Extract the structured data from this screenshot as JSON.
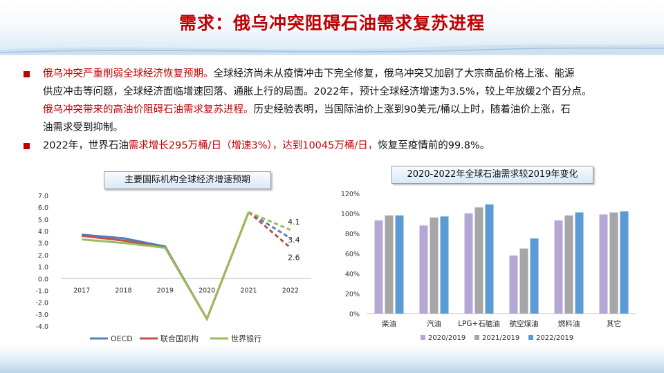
{
  "title": "需求：俄乌冲突阻碍石油需求复苏进程",
  "bullets": [
    {
      "segments": [
        {
          "text": "俄乌冲突严重削弱全球经济恢复预期。",
          "red": true
        },
        {
          "text": "全球经济尚未从疫情冲击下完全修复，俄乌冲突又加剧了大宗商品价格上涨、能源",
          "red": false
        }
      ]
    },
    {
      "segments": [
        {
          "text": "供应冲击等问题，全球经济面临增速回落、通胀上行的局面。2022年，预计全球经济增速为3.5%，较上年放缓2个百分点。",
          "red": false
        }
      ],
      "continuation": true
    },
    {
      "segments": [
        {
          "text": "俄乌冲突带来的高油价阻碍石油需求复苏进程。",
          "red": true
        },
        {
          "text": "历史经验表明，当国际油价上涨到90美元/桶以上时，随着油价上涨，石",
          "red": false
        }
      ],
      "continuation": true
    },
    {
      "segments": [
        {
          "text": "油需求受到抑制。",
          "red": false
        }
      ],
      "continuation": true
    },
    {
      "segments": [
        {
          "text": "2022年，世界石油",
          "red": false
        },
        {
          "text": "需求增长295万桶/日（增速3%），达到10045万桶/日，",
          "red": true
        },
        {
          "text": "恢复至疫情前的99.8%。",
          "red": false
        }
      ]
    }
  ],
  "chart_data": [
    {
      "type": "line",
      "title": "主要国际机构全球经济增速预期",
      "categories": [
        "2017",
        "2018",
        "2019",
        "2020",
        "2021",
        "2022"
      ],
      "ylim": [
        -4.0,
        7.0
      ],
      "yticks": [
        "7.0",
        "6.0",
        "5.0",
        "4.0",
        "3.0",
        "2.0",
        "1.0",
        "0.0",
        "-1.0",
        "-2.0",
        "-3.0",
        "-4.0"
      ],
      "series": [
        {
          "name": "OECD",
          "color": "#4f81bd",
          "values": [
            3.7,
            3.4,
            2.7,
            -3.4,
            5.6,
            3.4
          ]
        },
        {
          "name": "联合国机构",
          "color": "#c0504d",
          "values": [
            3.6,
            3.2,
            2.6,
            -3.4,
            5.6,
            2.6
          ]
        },
        {
          "name": "世界银行",
          "color": "#9bbb59",
          "values": [
            3.3,
            3.0,
            2.6,
            -3.4,
            5.6,
            4.1
          ]
        }
      ],
      "annotations": [
        "4.1",
        "3.4",
        "2.6"
      ],
      "forecast_from": "2021",
      "legend": "bottom"
    },
    {
      "type": "bar",
      "title": "2020-2022年全球石油需求较2019年变化",
      "categories": [
        "柴油",
        "汽油",
        "LPG+石脑油",
        "航空煤油",
        "燃料油",
        "其它"
      ],
      "ylim": [
        0,
        120
      ],
      "yticks": [
        "120%",
        "100%",
        "80%",
        "60%",
        "40%",
        "20%",
        "0%"
      ],
      "series": [
        {
          "name": "2020/2019",
          "color": "#b4a7d6",
          "values": [
            93,
            88,
            100,
            58,
            93,
            99
          ]
        },
        {
          "name": "2021/2019",
          "color": "#a6a6a6",
          "values": [
            98,
            96,
            106,
            65,
            98,
            101
          ]
        },
        {
          "name": "2022/2019",
          "color": "#5b9bd5",
          "values": [
            98,
            97,
            109,
            75,
            101,
            102
          ]
        }
      ],
      "legend": "bottom"
    }
  ]
}
